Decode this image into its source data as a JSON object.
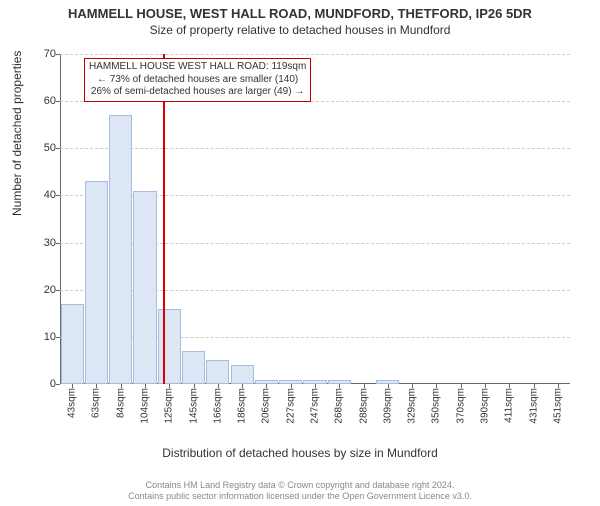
{
  "title": "HAMMELL HOUSE, WEST HALL ROAD, MUNDFORD, THETFORD, IP26 5DR",
  "subtitle": "Size of property relative to detached houses in Mundford",
  "ylabel": "Number of detached properties",
  "xlabel": "Distribution of detached houses by size in Mundford",
  "footer_line1": "Contains HM Land Registry data © Crown copyright and database right 2024.",
  "footer_line2": "Contains public sector information licensed under the Open Government Licence v3.0.",
  "chart": {
    "type": "bar",
    "ylim": [
      0,
      70
    ],
    "ytick_step": 10,
    "xcategories": [
      "43sqm",
      "63sqm",
      "84sqm",
      "104sqm",
      "125sqm",
      "145sqm",
      "166sqm",
      "186sqm",
      "206sqm",
      "227sqm",
      "247sqm",
      "268sqm",
      "288sqm",
      "309sqm",
      "329sqm",
      "350sqm",
      "370sqm",
      "390sqm",
      "411sqm",
      "431sqm",
      "451sqm"
    ],
    "values": [
      17,
      43,
      57,
      41,
      16,
      7,
      5,
      4,
      0.8,
      0.8,
      0.8,
      0.8,
      0,
      0.8,
      0,
      0,
      0,
      0,
      0,
      0,
      0
    ],
    "bar_fill": "#dce6f4",
    "bar_border": "#a7bcdf",
    "grid_color": "#cccccc",
    "axis_color": "#666666",
    "label_fontsize": 12,
    "tick_fontsize": 10,
    "background_color": "#ffffff"
  },
  "marker": {
    "value_sqm": 119,
    "line_color": "#dd0000",
    "box_lines": [
      "HAMMELL HOUSE WEST HALL ROAD: 119sqm",
      "← 73% of detached houses are smaller (140)",
      "26% of semi-detached houses are larger (49) →"
    ]
  }
}
